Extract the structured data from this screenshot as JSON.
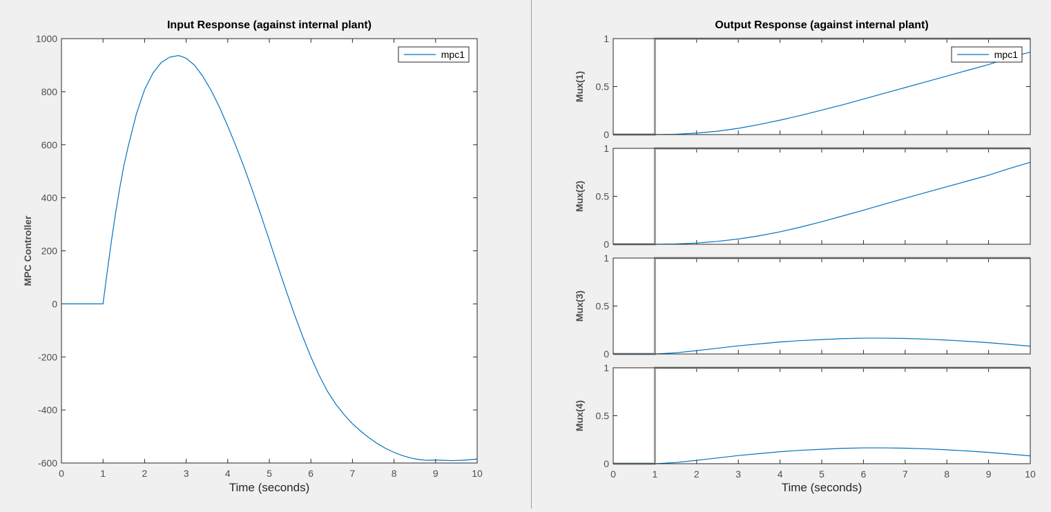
{
  "chart_data": [
    {
      "type": "line",
      "title": "Input Response (against internal plant)",
      "xlabel": "Time (seconds)",
      "ylabel": "MPC Controller",
      "xlim": [
        0,
        10
      ],
      "ylim": [
        -600,
        1000
      ],
      "xticks": [
        0,
        1,
        2,
        3,
        4,
        5,
        6,
        7,
        8,
        9,
        10
      ],
      "yticks": [
        -600,
        -400,
        -200,
        0,
        200,
        400,
        600,
        800,
        1000
      ],
      "legend": {
        "position": "top-right",
        "entries": [
          "mpc1"
        ]
      },
      "grid": false,
      "series": [
        {
          "name": "mpc1",
          "color": "#0072bd",
          "x": [
            0,
            1,
            1.1,
            1.2,
            1.3,
            1.4,
            1.5,
            1.6,
            1.8,
            2.0,
            2.2,
            2.4,
            2.6,
            2.8,
            2.85,
            3.0,
            3.2,
            3.4,
            3.6,
            3.8,
            4.0,
            4.2,
            4.4,
            4.6,
            4.8,
            5.0,
            5.2,
            5.4,
            5.6,
            5.8,
            6.0,
            6.2,
            6.4,
            6.6,
            6.8,
            7.0,
            7.2,
            7.4,
            7.6,
            7.8,
            8.0,
            8.2,
            8.4,
            8.6,
            8.8,
            9.0,
            9.2,
            9.4,
            9.6,
            9.8,
            10.0
          ],
          "y": [
            0,
            0,
            120,
            235,
            340,
            435,
            520,
            590,
            715,
            808,
            870,
            910,
            930,
            936,
            935,
            926,
            900,
            858,
            805,
            742,
            670,
            594,
            512,
            425,
            334,
            240,
            145,
            52,
            -38,
            -122,
            -200,
            -270,
            -330,
            -378,
            -418,
            -452,
            -480,
            -505,
            -527,
            -545,
            -560,
            -572,
            -581,
            -587,
            -590,
            -589,
            -590,
            -591,
            -590,
            -588,
            -585
          ]
        }
      ]
    },
    {
      "type": "line",
      "title": "Output Response (against internal plant)",
      "xlabel": "Time (seconds)",
      "xlim": [
        0,
        10
      ],
      "xticks": [
        0,
        1,
        2,
        3,
        4,
        5,
        6,
        7,
        8,
        9,
        10
      ],
      "legend": {
        "position": "top-right",
        "entries": [
          "mpc1"
        ]
      },
      "grid": false,
      "subplots": [
        {
          "ylabel": "Mux(1)",
          "ylim": [
            0,
            1
          ],
          "yticks": [
            0,
            0.5,
            1
          ],
          "reference": {
            "color": "#999999",
            "x": [
              0,
              1,
              1,
              10
            ],
            "y": [
              0,
              0,
              1,
              1
            ]
          },
          "series": [
            {
              "name": "mpc1",
              "color": "#0072bd",
              "x": [
                0,
                1,
                1.5,
                2,
                2.5,
                3,
                3.5,
                4,
                4.5,
                5,
                5.5,
                6,
                6.5,
                7,
                7.5,
                8,
                8.5,
                9,
                9.5,
                10
              ],
              "y": [
                0,
                0,
                0.003,
                0.015,
                0.035,
                0.065,
                0.105,
                0.15,
                0.2,
                0.255,
                0.31,
                0.37,
                0.43,
                0.49,
                0.55,
                0.61,
                0.67,
                0.73,
                0.8,
                0.86
              ]
            }
          ]
        },
        {
          "ylabel": "Mux(2)",
          "ylim": [
            0,
            1
          ],
          "yticks": [
            0,
            0.5,
            1
          ],
          "reference": {
            "color": "#999999",
            "x": [
              0,
              1,
              1,
              10
            ],
            "y": [
              0,
              0,
              1,
              1
            ]
          },
          "series": [
            {
              "name": "mpc1",
              "color": "#0072bd",
              "x": [
                0,
                1,
                1.5,
                2,
                2.5,
                3,
                3.5,
                4,
                4.5,
                5,
                5.5,
                6,
                6.5,
                7,
                7.5,
                8,
                8.5,
                9,
                9.5,
                10
              ],
              "y": [
                0,
                0,
                0.003,
                0.013,
                0.03,
                0.055,
                0.088,
                0.13,
                0.18,
                0.235,
                0.295,
                0.355,
                0.418,
                0.48,
                0.54,
                0.6,
                0.66,
                0.72,
                0.79,
                0.855
              ]
            }
          ]
        },
        {
          "ylabel": "Mux(3)",
          "ylim": [
            0,
            1
          ],
          "yticks": [
            0,
            0.5,
            1
          ],
          "reference": {
            "color": "#999999",
            "x": [
              0,
              1,
              1,
              10
            ],
            "y": [
              0,
              0,
              1,
              1
            ]
          },
          "series": [
            {
              "name": "mpc1",
              "color": "#0072bd",
              "x": [
                0,
                1,
                1.5,
                2,
                2.5,
                3,
                3.5,
                4,
                4.5,
                5,
                5.5,
                6,
                6.5,
                7,
                7.5,
                8,
                8.5,
                9,
                9.5,
                10
              ],
              "y": [
                0,
                0,
                0.012,
                0.035,
                0.06,
                0.085,
                0.105,
                0.125,
                0.14,
                0.15,
                0.16,
                0.165,
                0.165,
                0.162,
                0.155,
                0.145,
                0.132,
                0.118,
                0.1,
                0.082
              ]
            }
          ]
        },
        {
          "ylabel": "Mux(4)",
          "ylim": [
            0,
            1
          ],
          "yticks": [
            0,
            0.5,
            1
          ],
          "reference": {
            "color": "#999999",
            "x": [
              0,
              1,
              1,
              10
            ],
            "y": [
              0,
              0,
              1,
              1
            ]
          },
          "series": [
            {
              "name": "mpc1",
              "color": "#0072bd",
              "x": [
                0,
                1,
                1.5,
                2,
                2.5,
                3,
                3.5,
                4,
                4.5,
                5,
                5.5,
                6,
                6.5,
                7,
                7.5,
                8,
                8.5,
                9,
                9.5,
                10
              ],
              "y": [
                0,
                0,
                0.012,
                0.035,
                0.06,
                0.085,
                0.105,
                0.125,
                0.14,
                0.15,
                0.16,
                0.165,
                0.165,
                0.162,
                0.155,
                0.145,
                0.132,
                0.118,
                0.1,
                0.082
              ]
            }
          ]
        }
      ]
    }
  ]
}
